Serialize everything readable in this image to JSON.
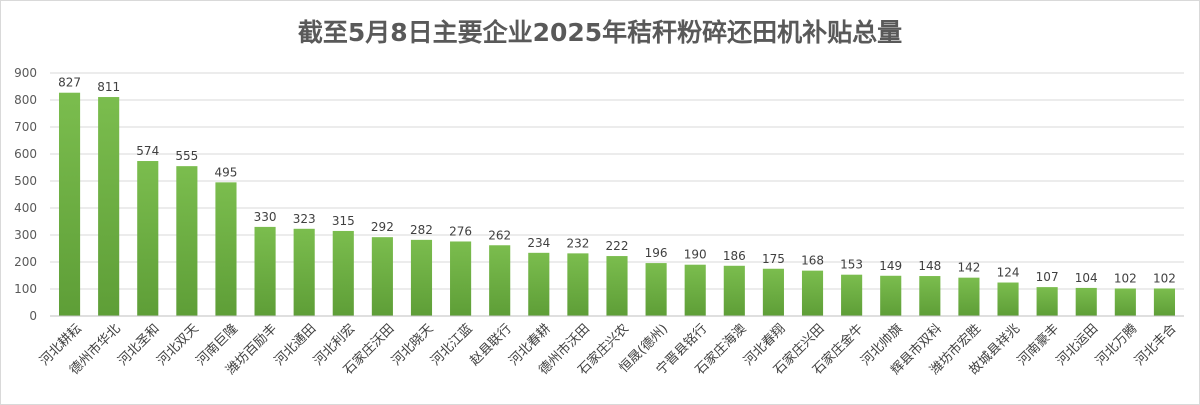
{
  "chart_data": {
    "type": "bar",
    "title": "截至5月8日主要企业2025年秸秆粉碎还田机补贴总量",
    "xlabel": "",
    "ylabel": "",
    "ylim": [
      0,
      900
    ],
    "yticks": [
      0,
      100,
      200,
      300,
      400,
      500,
      600,
      700,
      800,
      900
    ],
    "grid": true,
    "legend": "none",
    "bar_color": "#70ad47",
    "categories": [
      "河北耕耘",
      "德州市华北",
      "河北圣和",
      "河北双天",
      "河南巨隆",
      "潍坊百励丰",
      "河北通田",
      "河北利宏",
      "石家庄沃田",
      "河北晓天",
      "河北江蓝",
      "赵县联行",
      "河北春耕",
      "德州市沃田",
      "石家庄兴农",
      "恒晟(德州)",
      "宁晋县铭行",
      "石家庄海澳",
      "河北春翔",
      "石家庄兴田",
      "石家庄金牛",
      "河北帅旗",
      "辉县市双科",
      "潍坊市宏胜",
      "故城县祥兆",
      "河南豪丰",
      "河北运田",
      "河北万腾",
      "河北丰合"
    ],
    "values": [
      827,
      811,
      574,
      555,
      495,
      330,
      323,
      315,
      292,
      282,
      276,
      262,
      234,
      232,
      222,
      196,
      190,
      186,
      175,
      168,
      153,
      149,
      148,
      142,
      124,
      107,
      104,
      102,
      102
    ]
  }
}
